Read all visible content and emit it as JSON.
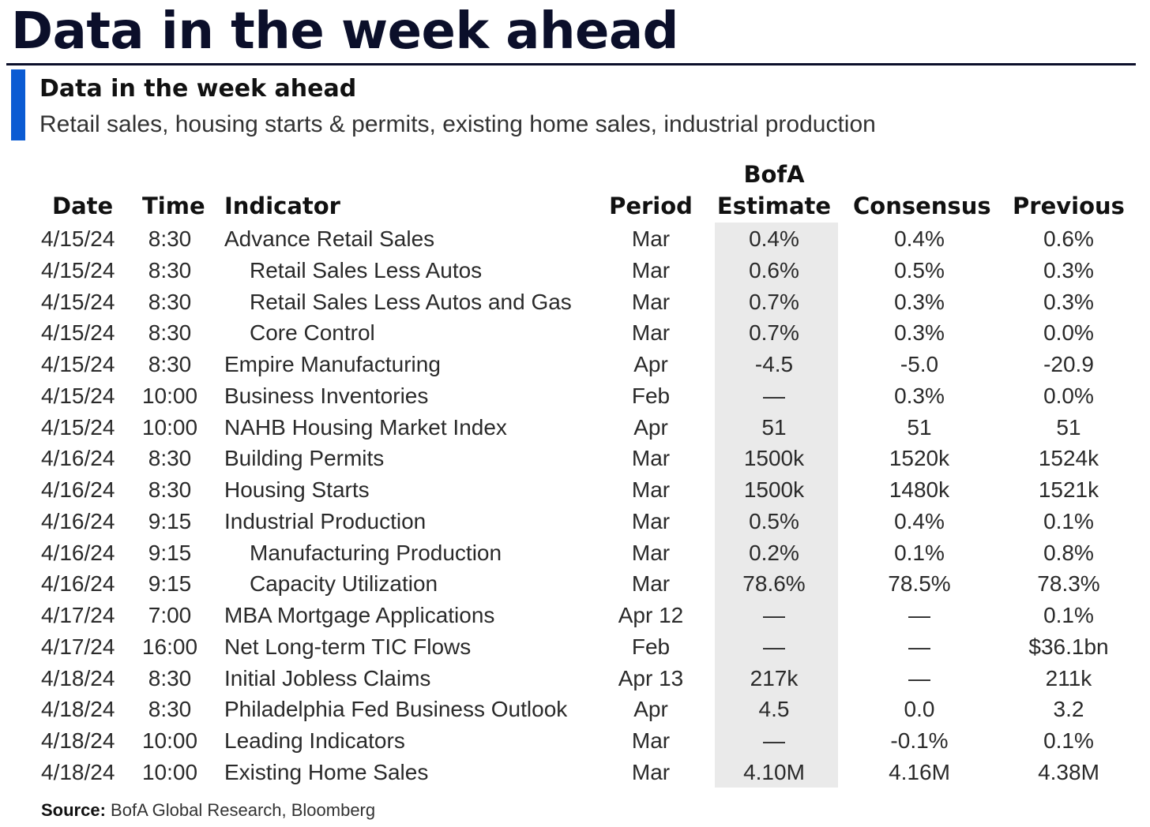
{
  "header": {
    "title": "Data in the week ahead"
  },
  "subheader": {
    "title": "Data in the week ahead",
    "description": "Retail sales, housing starts & permits, existing home sales, industrial production"
  },
  "table": {
    "columns": {
      "date": "Date",
      "time": "Time",
      "indicator": "Indicator",
      "period": "Period",
      "estimate_line1": "BofA",
      "estimate_line2": "Estimate",
      "consensus": "Consensus",
      "previous": "Previous"
    },
    "rows": [
      {
        "date": "4/15/24",
        "time": "8:30",
        "indicator": "Advance Retail Sales",
        "indent": false,
        "period": "Mar",
        "estimate": "0.4%",
        "consensus": "0.4%",
        "previous": "0.6%"
      },
      {
        "date": "4/15/24",
        "time": "8:30",
        "indicator": "Retail Sales Less Autos",
        "indent": true,
        "period": "Mar",
        "estimate": "0.6%",
        "consensus": "0.5%",
        "previous": "0.3%"
      },
      {
        "date": "4/15/24",
        "time": "8:30",
        "indicator": "Retail Sales Less Autos and Gas",
        "indent": true,
        "period": "Mar",
        "estimate": "0.7%",
        "consensus": "0.3%",
        "previous": "0.3%"
      },
      {
        "date": "4/15/24",
        "time": "8:30",
        "indicator": "Core Control",
        "indent": true,
        "period": "Mar",
        "estimate": "0.7%",
        "consensus": "0.3%",
        "previous": "0.0%"
      },
      {
        "date": "4/15/24",
        "time": "8:30",
        "indicator": "Empire Manufacturing",
        "indent": false,
        "period": "Apr",
        "estimate": "-4.5",
        "consensus": "-5.0",
        "previous": "-20.9"
      },
      {
        "date": "4/15/24",
        "time": "10:00",
        "indicator": "Business Inventories",
        "indent": false,
        "period": "Feb",
        "estimate": "—",
        "consensus": "0.3%",
        "previous": "0.0%"
      },
      {
        "date": "4/15/24",
        "time": "10:00",
        "indicator": "NAHB Housing Market Index",
        "indent": false,
        "period": "Apr",
        "estimate": "51",
        "consensus": "51",
        "previous": "51"
      },
      {
        "date": "4/16/24",
        "time": "8:30",
        "indicator": "Building Permits",
        "indent": false,
        "period": "Mar",
        "estimate": "1500k",
        "consensus": "1520k",
        "previous": "1524k"
      },
      {
        "date": "4/16/24",
        "time": "8:30",
        "indicator": "Housing Starts",
        "indent": false,
        "period": "Mar",
        "estimate": "1500k",
        "consensus": "1480k",
        "previous": "1521k"
      },
      {
        "date": "4/16/24",
        "time": "9:15",
        "indicator": "Industrial Production",
        "indent": false,
        "period": "Mar",
        "estimate": "0.5%",
        "consensus": "0.4%",
        "previous": "0.1%"
      },
      {
        "date": "4/16/24",
        "time": "9:15",
        "indicator": "Manufacturing Production",
        "indent": true,
        "period": "Mar",
        "estimate": "0.2%",
        "consensus": "0.1%",
        "previous": "0.8%"
      },
      {
        "date": "4/16/24",
        "time": "9:15",
        "indicator": "Capacity Utilization",
        "indent": true,
        "period": "Mar",
        "estimate": "78.6%",
        "consensus": "78.5%",
        "previous": "78.3%"
      },
      {
        "date": "4/17/24",
        "time": "7:00",
        "indicator": "MBA Mortgage Applications",
        "indent": false,
        "period": "Apr 12",
        "estimate": "—",
        "consensus": "—",
        "previous": "0.1%"
      },
      {
        "date": "4/17/24",
        "time": "16:00",
        "indicator": "Net Long-term TIC Flows",
        "indent": false,
        "period": "Feb",
        "estimate": "—",
        "consensus": "—",
        "previous": "$36.1bn"
      },
      {
        "date": "4/18/24",
        "time": "8:30",
        "indicator": "Initial Jobless Claims",
        "indent": false,
        "period": "Apr 13",
        "estimate": "217k",
        "consensus": "—",
        "previous": "211k"
      },
      {
        "date": "4/18/24",
        "time": "8:30",
        "indicator": "Philadelphia Fed Business Outlook",
        "indent": false,
        "period": "Apr",
        "estimate": "4.5",
        "consensus": "0.0",
        "previous": "3.2"
      },
      {
        "date": "4/18/24",
        "time": "10:00",
        "indicator": "Leading Indicators",
        "indent": false,
        "period": "Mar",
        "estimate": "—",
        "consensus": "-0.1%",
        "previous": "0.1%"
      },
      {
        "date": "4/18/24",
        "time": "10:00",
        "indicator": "Existing Home Sales",
        "indent": false,
        "period": "Mar",
        "estimate": "4.10M",
        "consensus": "4.16M",
        "previous": "4.38M"
      }
    ]
  },
  "footer": {
    "source_label": "Source:",
    "source_text": "BofA Global Research, Bloomberg"
  },
  "colors": {
    "title": "#0b0f2a",
    "accent": "#0b5bd3",
    "estimate_shade": "#eaeaea"
  }
}
